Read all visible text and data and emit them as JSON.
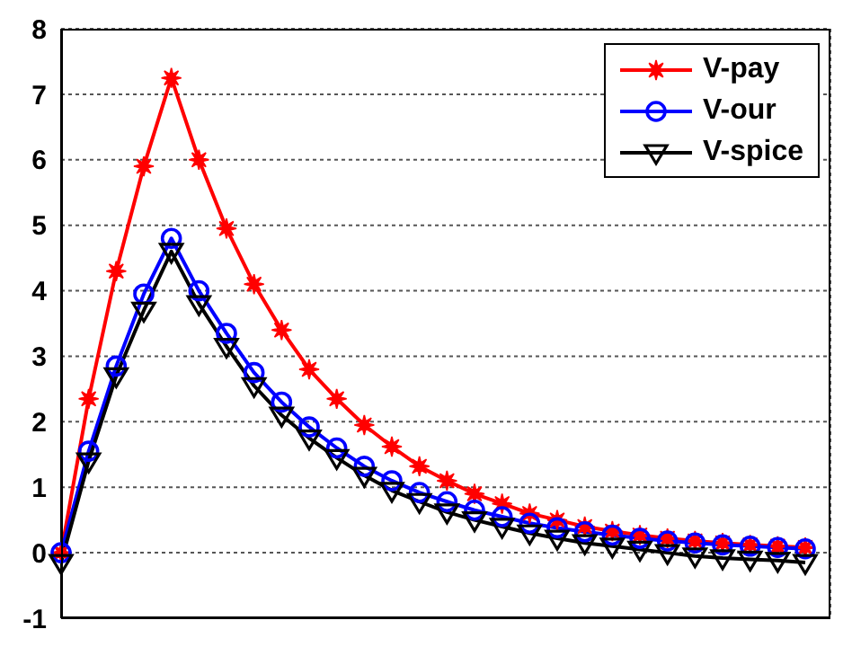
{
  "chart_data": {
    "type": "line",
    "categories": [
      null,
      null,
      null,
      null,
      null,
      null,
      null,
      null,
      null,
      null,
      null,
      null,
      null,
      null,
      null,
      null,
      null,
      null,
      null,
      null,
      null,
      null,
      null,
      null,
      null,
      null,
      null,
      null
    ],
    "ylim": [
      -1,
      8
    ],
    "yticks": [
      -1,
      0,
      1,
      2,
      3,
      4,
      5,
      6,
      7,
      8
    ],
    "grid": true,
    "legend": "top right",
    "line_style": "solid",
    "series": [
      {
        "name": "V-pay",
        "color": "#ff0000",
        "marker": "star",
        "values": [
          0,
          2.35,
          4.3,
          5.9,
          7.25,
          6.0,
          4.95,
          4.1,
          3.4,
          2.8,
          2.35,
          1.95,
          1.62,
          1.32,
          1.1,
          0.9,
          0.75,
          0.6,
          0.5,
          0.4,
          0.33,
          0.27,
          0.22,
          0.18,
          0.15,
          0.12,
          0.1,
          0.08
        ]
      },
      {
        "name": "V-our",
        "color": "#0000ff",
        "marker": "circle",
        "values": [
          0,
          1.55,
          2.85,
          3.95,
          4.8,
          4.0,
          3.35,
          2.75,
          2.3,
          1.92,
          1.6,
          1.32,
          1.1,
          0.92,
          0.78,
          0.65,
          0.55,
          0.45,
          0.38,
          0.32,
          0.27,
          0.22,
          0.18,
          0.15,
          0.12,
          0.1,
          0.08,
          0.06
        ]
      },
      {
        "name": "V-spice",
        "color": "#000000",
        "marker": "triangle",
        "values": [
          -0.15,
          1.4,
          2.7,
          3.7,
          4.6,
          3.8,
          3.15,
          2.55,
          2.1,
          1.75,
          1.45,
          1.18,
          0.95,
          0.78,
          0.62,
          0.5,
          0.4,
          0.3,
          0.22,
          0.15,
          0.1,
          0.05,
          0.0,
          -0.05,
          -0.08,
          -0.1,
          -0.12,
          -0.15
        ]
      }
    ]
  }
}
